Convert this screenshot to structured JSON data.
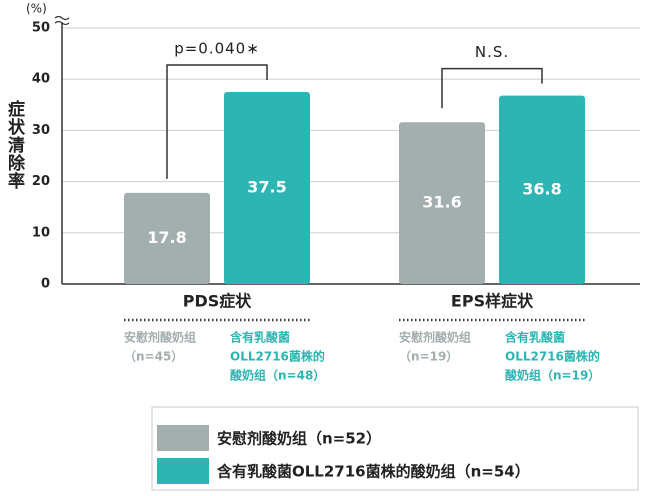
{
  "chart_data": {
    "type": "bar",
    "y_label": "症状清除率",
    "y_unit": "(%)",
    "categories": [
      "PDS症状",
      "EPS样症状"
    ],
    "series": [
      {
        "name": "安慰剂酸奶组（n=52）",
        "color": "#a3aeae",
        "values": [
          17.8,
          31.6
        ]
      },
      {
        "name": "含有乳酸菌OLL2716菌株的酸奶组（n=54）",
        "color": "#2cb5b3",
        "values": [
          37.5,
          36.8
        ]
      }
    ],
    "group_notes": [
      [
        [
          "安慰剂酸奶组",
          "（n=45）"
        ],
        [
          "含有乳酸菌",
          "OLL2716菌株的",
          "酸奶组（n=48）"
        ]
      ],
      [
        [
          "安慰剂酸奶组",
          "（n=19）"
        ],
        [
          "含有乳酸菌",
          "OLL2716菌株的",
          "酸奶组（n=19）"
        ]
      ]
    ],
    "annotations": [
      "p=0.040∗",
      "N.S."
    ],
    "ylim": [
      0,
      50
    ],
    "yticks": [
      0,
      10,
      20,
      30,
      40,
      50
    ],
    "grid": true
  }
}
